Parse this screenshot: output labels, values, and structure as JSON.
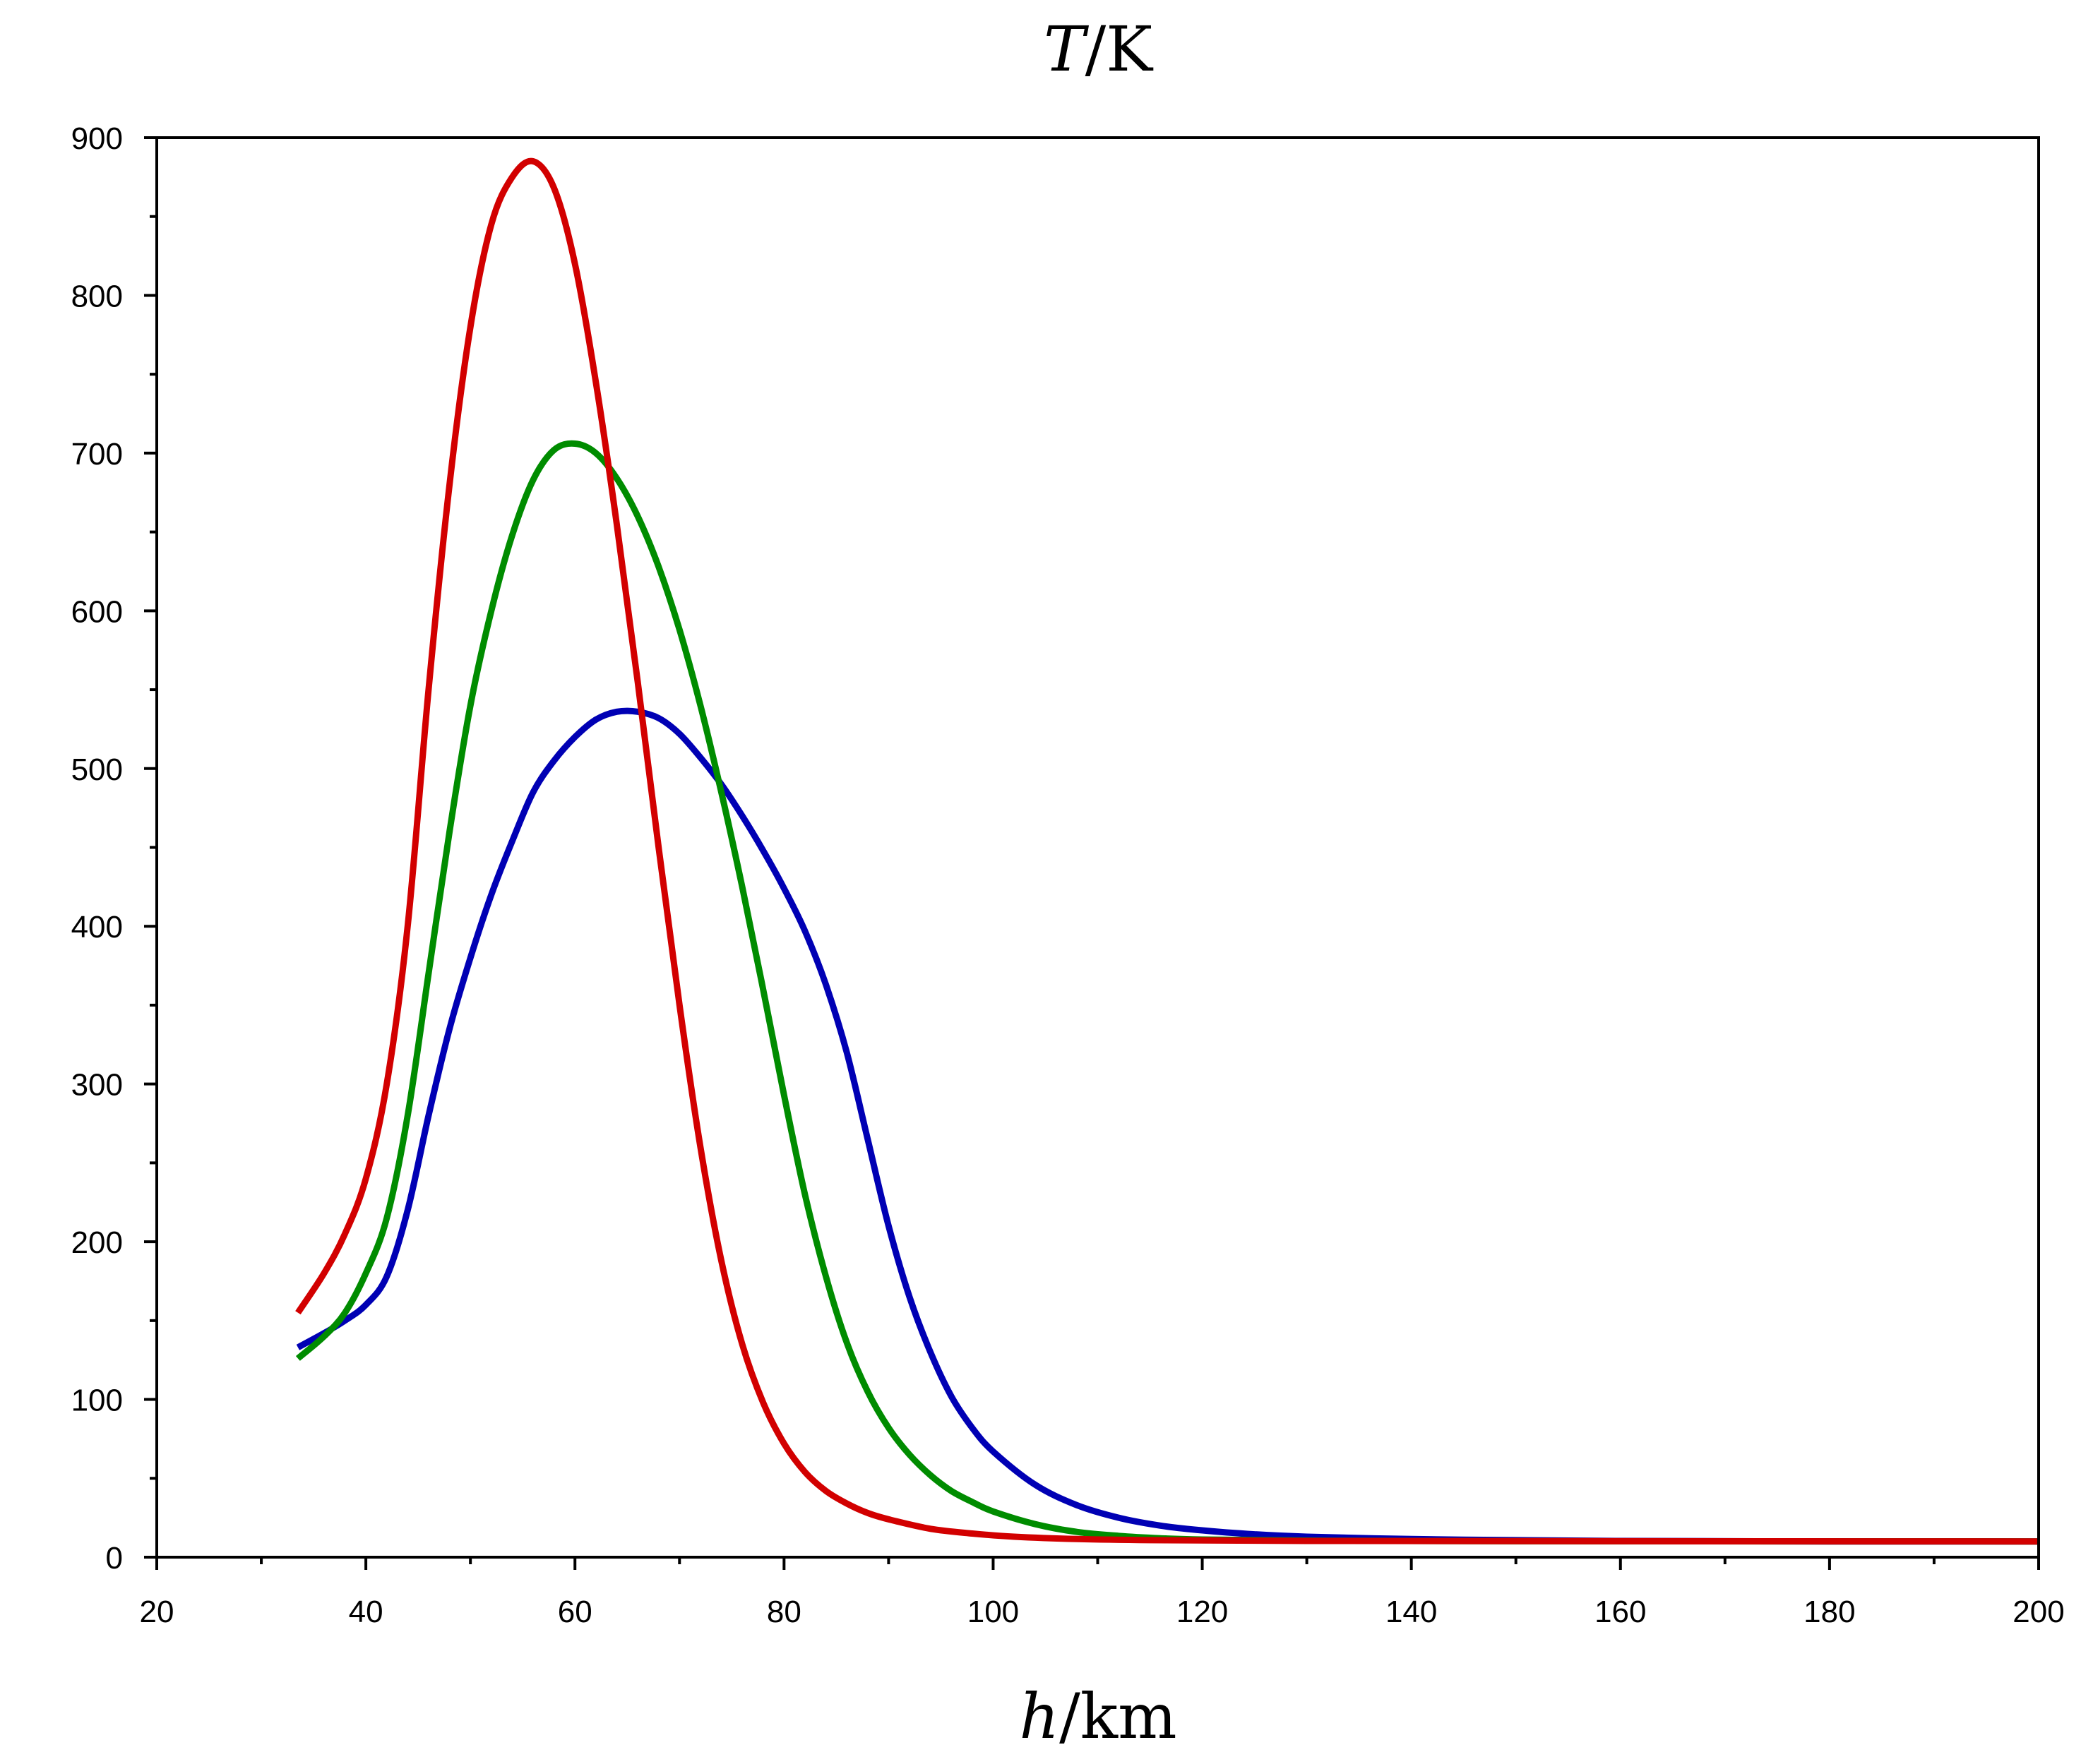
{
  "chart_data": {
    "type": "line",
    "title": "",
    "ylabel": {
      "symbol": "T",
      "unit": "/K"
    },
    "xlabel": {
      "symbol": "h",
      "unit": "/km"
    },
    "xlim": [
      20,
      200
    ],
    "ylim": [
      0,
      900
    ],
    "x_ticks": [
      20,
      40,
      60,
      80,
      100,
      120,
      140,
      160,
      180,
      200
    ],
    "y_ticks": [
      0,
      100,
      200,
      300,
      400,
      500,
      600,
      700,
      800,
      900
    ],
    "x_tick_labels": [
      "20",
      "40",
      "60",
      "80",
      "100",
      "120",
      "140",
      "160",
      "180",
      "200"
    ],
    "y_tick_labels": [
      "0",
      "100",
      "200",
      "300",
      "400",
      "500",
      "600",
      "700",
      "800",
      "900"
    ],
    "grid": false,
    "legend": "none",
    "series": [
      {
        "name": "blue",
        "color": "#0000b4",
        "points": [
          [
            33.5,
            133
          ],
          [
            36,
            142
          ],
          [
            38,
            150
          ],
          [
            40,
            160
          ],
          [
            42,
            178
          ],
          [
            44,
            220
          ],
          [
            46,
            280
          ],
          [
            48,
            335
          ],
          [
            50,
            380
          ],
          [
            52,
            420
          ],
          [
            54,
            454
          ],
          [
            56,
            485
          ],
          [
            58,
            505
          ],
          [
            60,
            520
          ],
          [
            62,
            531
          ],
          [
            64,
            536
          ],
          [
            66,
            536
          ],
          [
            68,
            532
          ],
          [
            70,
            522
          ],
          [
            72,
            507
          ],
          [
            74,
            490
          ],
          [
            76,
            470
          ],
          [
            78,
            448
          ],
          [
            80,
            424
          ],
          [
            82,
            397
          ],
          [
            84,
            363
          ],
          [
            86,
            320
          ],
          [
            88,
            265
          ],
          [
            90,
            210
          ],
          [
            92,
            165
          ],
          [
            94,
            130
          ],
          [
            96,
            102
          ],
          [
            98,
            82
          ],
          [
            100,
            67
          ],
          [
            104,
            46
          ],
          [
            108,
            33
          ],
          [
            112,
            25
          ],
          [
            116,
            20
          ],
          [
            120,
            17
          ],
          [
            125,
            14.5
          ],
          [
            130,
            13
          ],
          [
            140,
            11.5
          ],
          [
            150,
            10.8
          ],
          [
            160,
            10.3
          ],
          [
            180,
            10
          ],
          [
            200,
            10
          ]
        ]
      },
      {
        "name": "green",
        "color": "#008c00",
        "points": [
          [
            33.5,
            126
          ],
          [
            36,
            140
          ],
          [
            38,
            155
          ],
          [
            40,
            180
          ],
          [
            42,
            215
          ],
          [
            44,
            280
          ],
          [
            46,
            370
          ],
          [
            48,
            460
          ],
          [
            50,
            540
          ],
          [
            52,
            600
          ],
          [
            54,
            648
          ],
          [
            56,
            683
          ],
          [
            58,
            702
          ],
          [
            60,
            706
          ],
          [
            62,
            700
          ],
          [
            64,
            684
          ],
          [
            66,
            660
          ],
          [
            68,
            628
          ],
          [
            70,
            588
          ],
          [
            72,
            540
          ],
          [
            74,
            485
          ],
          [
            76,
            425
          ],
          [
            78,
            360
          ],
          [
            80,
            293
          ],
          [
            82,
            230
          ],
          [
            84,
            178
          ],
          [
            86,
            136
          ],
          [
            88,
            105
          ],
          [
            90,
            82
          ],
          [
            92,
            65
          ],
          [
            94,
            52
          ],
          [
            96,
            42
          ],
          [
            98,
            35
          ],
          [
            100,
            29
          ],
          [
            104,
            21
          ],
          [
            108,
            16
          ],
          [
            112,
            13.5
          ],
          [
            116,
            12
          ],
          [
            120,
            11.2
          ],
          [
            130,
            10.5
          ],
          [
            150,
            10.1
          ],
          [
            200,
            10
          ]
        ]
      },
      {
        "name": "red",
        "color": "#d20000",
        "points": [
          [
            33.5,
            155
          ],
          [
            36,
            180
          ],
          [
            38,
            205
          ],
          [
            40,
            240
          ],
          [
            42,
            300
          ],
          [
            44,
            400
          ],
          [
            46,
            550
          ],
          [
            48,
            680
          ],
          [
            50,
            780
          ],
          [
            52,
            845
          ],
          [
            54,
            875
          ],
          [
            56,
            885
          ],
          [
            58,
            868
          ],
          [
            60,
            820
          ],
          [
            62,
            745
          ],
          [
            64,
            655
          ],
          [
            66,
            555
          ],
          [
            68,
            450
          ],
          [
            70,
            350
          ],
          [
            72,
            260
          ],
          [
            74,
            188
          ],
          [
            76,
            135
          ],
          [
            78,
            98
          ],
          [
            80,
            72
          ],
          [
            82,
            54
          ],
          [
            84,
            42
          ],
          [
            86,
            34
          ],
          [
            88,
            28
          ],
          [
            90,
            24
          ],
          [
            94,
            18
          ],
          [
            98,
            15
          ],
          [
            102,
            13
          ],
          [
            108,
            11.5
          ],
          [
            115,
            10.8
          ],
          [
            130,
            10.3
          ],
          [
            160,
            10.1
          ],
          [
            200,
            10
          ]
        ]
      }
    ]
  }
}
